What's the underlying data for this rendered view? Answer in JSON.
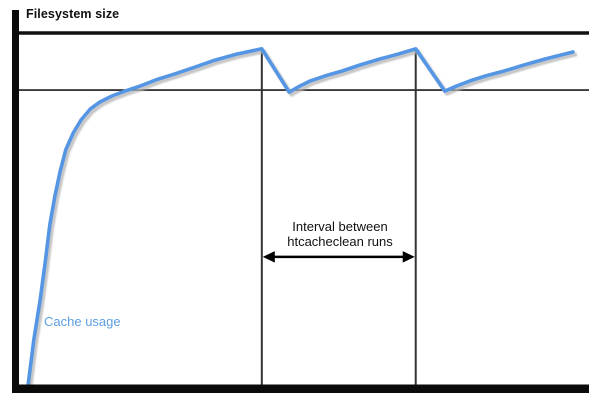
{
  "labels": {
    "filesystem_size": "Filesystem size",
    "cache_usage": "Cache usage",
    "interval_annotation": "Interval between\nhtcacheclean runs"
  },
  "colors": {
    "background": "#ffffff",
    "cache_curve": "#5596E4",
    "cache_curve_shadow": "#b4b4b4",
    "cache_usage_label": "#5D9FE5",
    "axis": "#0a0a0a",
    "filesystem_size_line": "#111111",
    "cache_limit_line": "#1c1c1c",
    "cleanup_line": "#333333",
    "arrow": "#000000",
    "annotation_text": "#111111"
  },
  "chart_data": {
    "type": "line",
    "title": "",
    "xlabel": "",
    "ylabel": "",
    "xlim": [
      0,
      100
    ],
    "ylim": [
      0,
      100
    ],
    "grid": false,
    "legend_position": "none",
    "axis_tick_labels": "none (qualitative diagram, unlabeled axes)",
    "series": [
      {
        "name": "Cache usage",
        "color": "#5596E4",
        "points": [
          [
            1.6,
            0.0
          ],
          [
            2.6,
            12.8
          ],
          [
            3.7,
            24.1
          ],
          [
            4.6,
            34.9
          ],
          [
            5.4,
            45.5
          ],
          [
            6.3,
            53.7
          ],
          [
            7.2,
            60.5
          ],
          [
            8.2,
            66.8
          ],
          [
            9.5,
            71.6
          ],
          [
            10.9,
            75.3
          ],
          [
            12.5,
            78.4
          ],
          [
            14.2,
            80.4
          ],
          [
            16.3,
            82.1
          ],
          [
            18.6,
            83.5
          ],
          [
            21.2,
            84.9
          ],
          [
            24.4,
            86.9
          ],
          [
            27.4,
            88.4
          ],
          [
            30.9,
            90.3
          ],
          [
            34.4,
            92.3
          ],
          [
            38.2,
            94.0
          ],
          [
            42.6,
            95.5
          ],
          [
            47.4,
            83.2
          ],
          [
            49.0,
            84.7
          ],
          [
            51.1,
            86.4
          ],
          [
            53.7,
            87.8
          ],
          [
            56.7,
            89.2
          ],
          [
            59.8,
            90.9
          ],
          [
            63.3,
            92.6
          ],
          [
            66.5,
            94.0
          ],
          [
            69.6,
            95.5
          ],
          [
            74.7,
            83.5
          ],
          [
            76.7,
            84.9
          ],
          [
            79.1,
            86.4
          ],
          [
            81.9,
            87.8
          ],
          [
            85.1,
            89.2
          ],
          [
            88.6,
            90.9
          ],
          [
            92.3,
            92.6
          ],
          [
            97.2,
            94.6
          ]
        ]
      }
    ],
    "reference_lines": [
      {
        "name": "Filesystem size",
        "axis": "y",
        "value": 100
      },
      {
        "name": "Cache size limit",
        "axis": "y",
        "value": 83.8
      },
      {
        "name": "htcacheclean run 1",
        "axis": "x",
        "value": 42.6,
        "span": [
          0,
          95.5
        ]
      },
      {
        "name": "htcacheclean run 2",
        "axis": "x",
        "value": 69.6,
        "span": [
          0,
          95.5
        ]
      }
    ],
    "annotations": [
      {
        "name": "interval-arrow",
        "type": "double-headed-arrow",
        "x1": 42.6,
        "x2": 69.6,
        "y": 36.4,
        "label": "Interval between htcacheclean runs"
      }
    ]
  }
}
